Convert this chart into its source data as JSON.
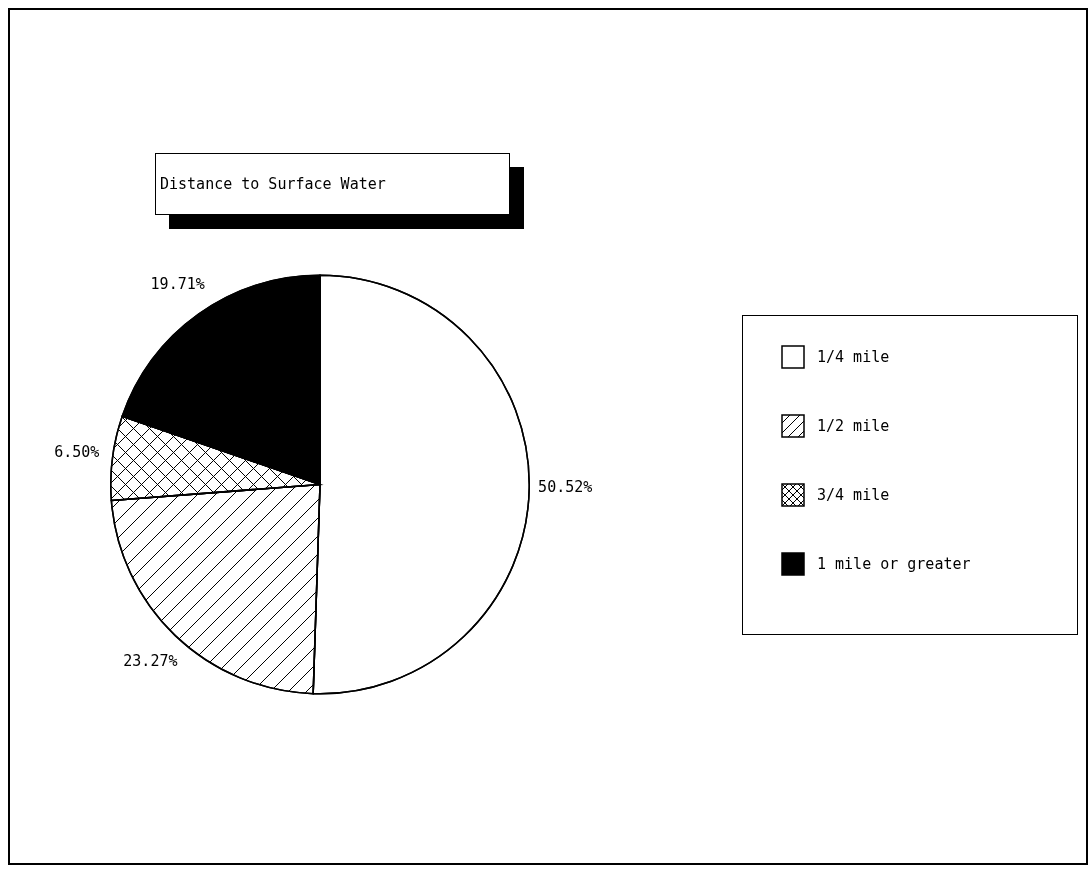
{
  "chart_data": {
    "type": "pie",
    "title": "Distance to Surface Water",
    "categories": [
      "1/4 mile",
      "1/2 mile",
      "3/4 mile",
      "1 mile or greater"
    ],
    "values": [
      50.52,
      23.27,
      6.5,
      19.71
    ],
    "colors": [
      "#ffffff",
      "#ffffff",
      "#ffffff",
      "#000000"
    ],
    "value_labels": [
      "50.52%",
      "23.27%",
      "6.50%",
      "19.71%"
    ],
    "legend": "right"
  }
}
